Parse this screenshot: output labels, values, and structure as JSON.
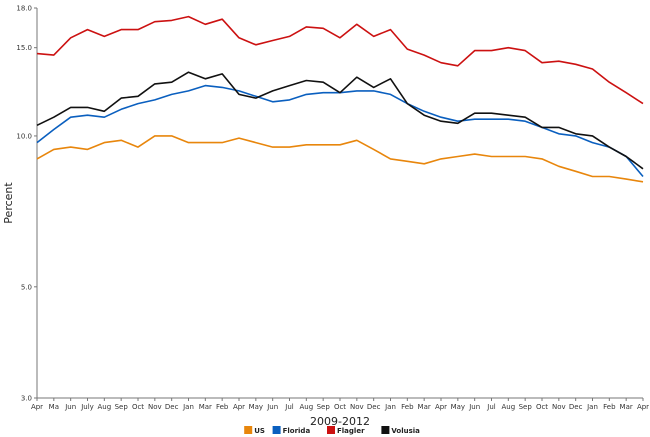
{
  "chart_data": {
    "type": "line",
    "title": "",
    "xlabel": "2009-2012",
    "ylabel": "Percent",
    "ylim": [
      3.0,
      18.0
    ],
    "yticks": [
      "3.0",
      "5.0",
      "10.0",
      "15.0",
      "18.0"
    ],
    "ytick_values": [
      3.0,
      5.0,
      10.0,
      15.0,
      18.0
    ],
    "y_scale": "log",
    "legend_position": "bottom-center",
    "grid": false,
    "categories": [
      "Apr",
      "Ma",
      "Jun",
      "July",
      "Aug",
      "Sep",
      "Oct",
      "Nov",
      "Dec",
      "Jan",
      "Mar",
      "Feb",
      "Apr",
      "May",
      "Jun",
      "Jul",
      "Aug",
      "Sep",
      "Oct",
      "Nov",
      "Dec",
      "Jan",
      "Feb",
      "Mar",
      "Apr",
      "May",
      "Jun",
      "Jul",
      "Aug",
      "Sep",
      "Oct",
      "Nov",
      "Dec",
      "Jan",
      "Feb",
      "Mar",
      "Apr"
    ],
    "series": [
      {
        "name": "US",
        "color": "#e8860c",
        "values": [
          9.0,
          9.4,
          9.5,
          9.4,
          9.7,
          9.8,
          9.5,
          10.0,
          10.0,
          9.7,
          9.7,
          9.7,
          9.9,
          9.7,
          9.5,
          9.5,
          9.6,
          9.6,
          9.6,
          9.8,
          9.4,
          9.0,
          8.9,
          8.8,
          9.0,
          9.1,
          9.2,
          9.1,
          9.1,
          9.1,
          9.0,
          8.7,
          8.5,
          8.3,
          8.3,
          8.2,
          8.1
        ]
      },
      {
        "name": "Florida",
        "color": "#0a5fbf",
        "values": [
          9.7,
          10.3,
          10.9,
          11.0,
          10.9,
          11.3,
          11.6,
          11.8,
          12.1,
          12.3,
          12.6,
          12.5,
          12.3,
          12.0,
          11.7,
          11.8,
          12.1,
          12.2,
          12.2,
          12.3,
          12.3,
          12.1,
          11.6,
          11.2,
          10.9,
          10.7,
          10.8,
          10.8,
          10.8,
          10.7,
          10.4,
          10.1,
          10.0,
          9.7,
          9.5,
          9.1,
          8.3
        ]
      },
      {
        "name": "Flagler",
        "color": "#cc1111",
        "values": [
          14.6,
          14.5,
          15.7,
          16.3,
          15.8,
          16.3,
          16.3,
          16.9,
          17.0,
          17.3,
          16.7,
          17.1,
          15.7,
          15.2,
          15.5,
          15.8,
          16.5,
          16.4,
          15.7,
          16.7,
          15.8,
          16.3,
          14.9,
          14.5,
          14.0,
          13.8,
          14.8,
          14.8,
          15.0,
          14.8,
          14.0,
          14.1,
          13.9,
          13.6,
          12.8,
          12.2,
          11.6
        ]
      },
      {
        "name": "Volusia",
        "color": "#111111",
        "values": [
          10.5,
          10.9,
          11.4,
          11.4,
          11.2,
          11.9,
          12.0,
          12.7,
          12.8,
          13.4,
          13.0,
          13.3,
          12.1,
          11.9,
          12.3,
          12.6,
          12.9,
          12.8,
          12.2,
          13.1,
          12.5,
          13.0,
          11.6,
          11.0,
          10.7,
          10.6,
          11.1,
          11.1,
          11.0,
          10.9,
          10.4,
          10.4,
          10.1,
          10.0,
          9.5,
          9.1,
          8.6
        ]
      }
    ]
  }
}
